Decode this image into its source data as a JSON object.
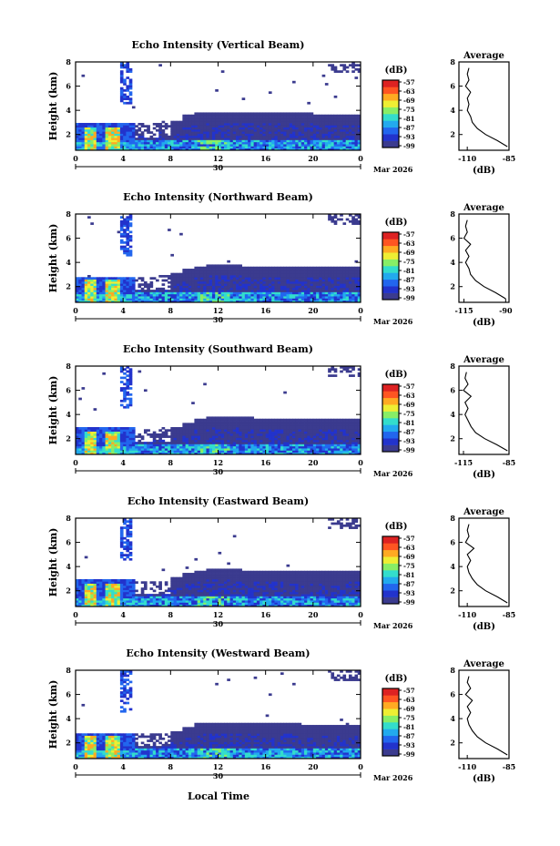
{
  "figure": {
    "x_axis_title": "Local Time",
    "date_label": "Mar 2026",
    "day_label": "30",
    "cbar_unit": "(dB)",
    "avg_title": "Average",
    "avg_xlabel": "(dB)",
    "y_label": "Height (km)"
  },
  "colors": {
    "colormap": [
      "#3b3b8f",
      "#2233cc",
      "#2266ee",
      "#22aaee",
      "#33ddcc",
      "#88ee66",
      "#eeee33",
      "#ffaa22",
      "#ff5522",
      "#dd2222"
    ],
    "background": "#ffffff"
  },
  "chart_data": [
    {
      "type": "heatmap",
      "title": "Echo Intensity (Vertical Beam)",
      "ylabel": "Height (km)",
      "x_ticks": [
        "0",
        "4",
        "8",
        "12",
        "16",
        "20",
        "0"
      ],
      "y_ticks": [
        "2",
        "4",
        "6",
        "8"
      ],
      "xlim": [
        0,
        24
      ],
      "ylim": [
        0.7,
        8
      ],
      "colorbar_label": "(dB)",
      "colorbar_ticks": [
        "-57",
        "-63",
        "-69",
        "-75",
        "-81",
        "-87",
        "-93",
        "-99"
      ],
      "cloud_top_km": [
        3.0,
        3.0,
        3.0,
        3.0,
        3.0,
        2.9,
        2.9,
        3.1,
        3.2,
        3.6,
        3.8,
        3.9,
        3.9,
        3.9,
        3.8,
        3.8,
        3.8,
        3.8,
        3.8,
        3.8,
        3.7,
        3.7,
        3.7,
        3.7
      ],
      "average_profile": {
        "title": "Average",
        "xlabel": "(dB)",
        "x_ticks": [
          "-110",
          "-85"
        ],
        "y_ticks": [
          "2",
          "4",
          "6",
          "8"
        ],
        "xlim": [
          -115,
          -85
        ],
        "ylim": [
          0.7,
          8
        ],
        "height_km": [
          1.0,
          1.5,
          2.0,
          2.5,
          3.0,
          3.5,
          4.0,
          4.5,
          5.0,
          5.5,
          6.0,
          6.5,
          7.0,
          7.5
        ],
        "db": [
          -86,
          -92,
          -99,
          -104,
          -107,
          -108,
          -110,
          -109,
          -110,
          -108,
          -111,
          -109,
          -110,
          -109
        ]
      }
    },
    {
      "type": "heatmap",
      "title": "Echo Intensity (Northward Beam)",
      "ylabel": "Height (km)",
      "x_ticks": [
        "0",
        "4",
        "8",
        "12",
        "16",
        "20",
        "0"
      ],
      "y_ticks": [
        "2",
        "4",
        "6",
        "8"
      ],
      "xlim": [
        0,
        24
      ],
      "ylim": [
        0.7,
        8
      ],
      "colorbar_label": "(dB)",
      "colorbar_ticks": [
        "-57",
        "-63",
        "-69",
        "-75",
        "-81",
        "-87",
        "-93",
        "-99"
      ],
      "cloud_top_km": [
        2.8,
        2.8,
        2.8,
        2.8,
        2.8,
        2.7,
        2.7,
        2.9,
        3.1,
        3.4,
        3.7,
        3.8,
        3.8,
        3.8,
        3.7,
        3.7,
        3.7,
        3.7,
        3.7,
        3.6,
        3.6,
        3.6,
        3.6,
        3.6
      ],
      "average_profile": {
        "title": "Average",
        "xlabel": "(dB)",
        "x_ticks": [
          "-115",
          "-90"
        ],
        "y_ticks": [
          "2",
          "4",
          "6",
          "8"
        ],
        "xlim": [
          -118,
          -88
        ],
        "ylim": [
          0.7,
          8
        ],
        "height_km": [
          1.0,
          1.5,
          2.0,
          2.5,
          3.0,
          3.5,
          4.0,
          4.5,
          5.0,
          5.5,
          6.0,
          6.5,
          7.0,
          7.5
        ],
        "db": [
          -90,
          -96,
          -103,
          -108,
          -111,
          -112,
          -114,
          -112,
          -114,
          -111,
          -115,
          -113,
          -114,
          -113
        ]
      }
    },
    {
      "type": "heatmap",
      "title": "Echo Intensity (Southward Beam)",
      "ylabel": "Height (km)",
      "x_ticks": [
        "0",
        "4",
        "8",
        "12",
        "16",
        "20",
        "0"
      ],
      "y_ticks": [
        "2",
        "4",
        "6",
        "8"
      ],
      "xlim": [
        0,
        24
      ],
      "ylim": [
        0.7,
        8
      ],
      "colorbar_label": "(dB)",
      "colorbar_ticks": [
        "-57",
        "-63",
        "-69",
        "-75",
        "-81",
        "-87",
        "-93",
        "-99"
      ],
      "cloud_top_km": [
        2.9,
        2.9,
        2.9,
        2.9,
        2.9,
        2.8,
        2.8,
        2.8,
        3.0,
        3.3,
        3.6,
        3.8,
        3.8,
        3.8,
        3.8,
        3.7,
        3.7,
        3.7,
        3.7,
        3.6,
        3.6,
        3.6,
        3.6,
        3.6
      ],
      "average_profile": {
        "title": "Average",
        "xlabel": "(dB)",
        "x_ticks": [
          "-115",
          "-85"
        ],
        "y_ticks": [
          "2",
          "4",
          "6",
          "8"
        ],
        "xlim": [
          -118,
          -85
        ],
        "ylim": [
          0.7,
          8
        ],
        "height_km": [
          1.0,
          1.5,
          2.0,
          2.5,
          3.0,
          3.5,
          4.0,
          4.5,
          5.0,
          5.5,
          6.0,
          6.5,
          7.0,
          7.5
        ],
        "db": [
          -86,
          -93,
          -101,
          -107,
          -110,
          -112,
          -114,
          -112,
          -114,
          -110,
          -115,
          -112,
          -114,
          -113
        ]
      }
    },
    {
      "type": "heatmap",
      "title": "Echo Intensity (Eastward Beam)",
      "ylabel": "Height (km)",
      "x_ticks": [
        "0",
        "4",
        "8",
        "12",
        "16",
        "20",
        "0"
      ],
      "y_ticks": [
        "2",
        "4",
        "6",
        "8"
      ],
      "xlim": [
        0,
        24
      ],
      "ylim": [
        0.7,
        8
      ],
      "colorbar_label": "(dB)",
      "colorbar_ticks": [
        "-57",
        "-63",
        "-69",
        "-75",
        "-81",
        "-87",
        "-93",
        "-99"
      ],
      "cloud_top_km": [
        2.9,
        2.9,
        2.9,
        2.9,
        2.9,
        2.8,
        2.8,
        3.0,
        3.2,
        3.5,
        3.7,
        3.8,
        3.8,
        3.8,
        3.7,
        3.7,
        3.7,
        3.7,
        3.7,
        3.6,
        3.6,
        3.6,
        3.6,
        3.6
      ],
      "average_profile": {
        "title": "Average",
        "xlabel": "(dB)",
        "x_ticks": [
          "-110",
          "-85"
        ],
        "y_ticks": [
          "2",
          "4",
          "6",
          "8"
        ],
        "xlim": [
          -115,
          -85
        ],
        "ylim": [
          0.7,
          8
        ],
        "height_km": [
          1.0,
          1.5,
          2.0,
          2.5,
          3.0,
          3.5,
          4.0,
          4.5,
          5.0,
          5.5,
          6.0,
          6.5,
          7.0,
          7.5
        ],
        "db": [
          -86,
          -92,
          -99,
          -104,
          -107,
          -109,
          -110,
          -108,
          -110,
          -106,
          -111,
          -109,
          -110,
          -109
        ]
      }
    },
    {
      "type": "heatmap",
      "title": "Echo Intensity (Westward Beam)",
      "ylabel": "Height (km)",
      "x_ticks": [
        "0",
        "4",
        "8",
        "12",
        "16",
        "20",
        "0"
      ],
      "y_ticks": [
        "2",
        "4",
        "6",
        "8"
      ],
      "xlim": [
        0,
        24
      ],
      "ylim": [
        0.7,
        8
      ],
      "colorbar_label": "(dB)",
      "colorbar_ticks": [
        "-57",
        "-63",
        "-69",
        "-75",
        "-81",
        "-87",
        "-93",
        "-99"
      ],
      "cloud_top_km": [
        2.8,
        2.8,
        2.8,
        2.8,
        2.8,
        2.7,
        2.7,
        2.7,
        3.0,
        3.3,
        3.6,
        3.7,
        3.7,
        3.7,
        3.6,
        3.6,
        3.6,
        3.6,
        3.6,
        3.5,
        3.5,
        3.5,
        3.5,
        3.5
      ],
      "average_profile": {
        "title": "Average",
        "xlabel": "(dB)",
        "x_ticks": [
          "-110",
          "-85"
        ],
        "y_ticks": [
          "2",
          "4",
          "6",
          "8"
        ],
        "xlim": [
          -115,
          -85
        ],
        "ylim": [
          0.7,
          8
        ],
        "height_km": [
          1.0,
          1.5,
          2.0,
          2.5,
          3.0,
          3.5,
          4.0,
          4.5,
          5.0,
          5.5,
          6.0,
          6.5,
          7.0,
          7.5
        ],
        "db": [
          -86,
          -92,
          -99,
          -104,
          -107,
          -109,
          -110,
          -108,
          -110,
          -107,
          -111,
          -108,
          -110,
          -109
        ]
      }
    }
  ]
}
